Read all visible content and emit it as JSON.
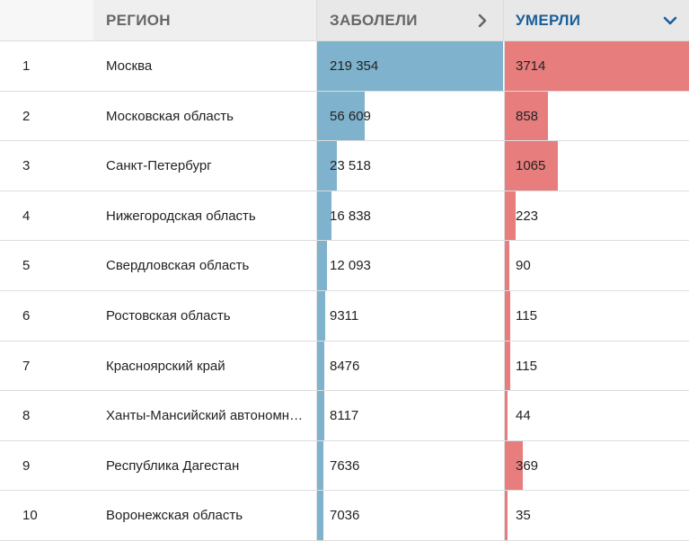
{
  "header": {
    "region": "РЕГИОН",
    "cases": "ЗАБОЛЕЛИ",
    "deaths": "УМЕРЛИ",
    "cases_sort_icon": "chevron-right-icon",
    "deaths_sort_icon": "chevron-down-icon"
  },
  "colors": {
    "cases_bar": "#7fb2cc",
    "deaths_bar": "#e77d7d",
    "active_header": "#1a5f9a"
  },
  "scale": {
    "cases_max": 219354,
    "deaths_max": 3714
  },
  "rows": [
    {
      "rank": "1",
      "region": "Москва",
      "cases": 219354,
      "cases_label": "219 354",
      "deaths": 3714,
      "deaths_label": "3714"
    },
    {
      "rank": "2",
      "region": "Московская область",
      "cases": 56609,
      "cases_label": "56 609",
      "deaths": 858,
      "deaths_label": "858"
    },
    {
      "rank": "3",
      "region": "Санкт-Петербург",
      "cases": 23518,
      "cases_label": "23 518",
      "deaths": 1065,
      "deaths_label": "1065"
    },
    {
      "rank": "4",
      "region": "Нижегородская область",
      "cases": 16838,
      "cases_label": "16 838",
      "deaths": 223,
      "deaths_label": "223"
    },
    {
      "rank": "5",
      "region": "Свердловская область",
      "cases": 12093,
      "cases_label": "12 093",
      "deaths": 90,
      "deaths_label": "90"
    },
    {
      "rank": "6",
      "region": "Ростовская область",
      "cases": 9311,
      "cases_label": "9311",
      "deaths": 115,
      "deaths_label": "115"
    },
    {
      "rank": "7",
      "region": "Красноярский край",
      "cases": 8476,
      "cases_label": "8476",
      "deaths": 115,
      "deaths_label": "115"
    },
    {
      "rank": "8",
      "region": "Ханты-Мансийский автономный округ",
      "cases": 8117,
      "cases_label": "8117",
      "deaths": 44,
      "deaths_label": "44"
    },
    {
      "rank": "9",
      "region": "Республика Дагестан",
      "cases": 7636,
      "cases_label": "7636",
      "deaths": 369,
      "deaths_label": "369"
    },
    {
      "rank": "10",
      "region": "Воронежская область",
      "cases": 7036,
      "cases_label": "7036",
      "deaths": 35,
      "deaths_label": "35"
    }
  ]
}
